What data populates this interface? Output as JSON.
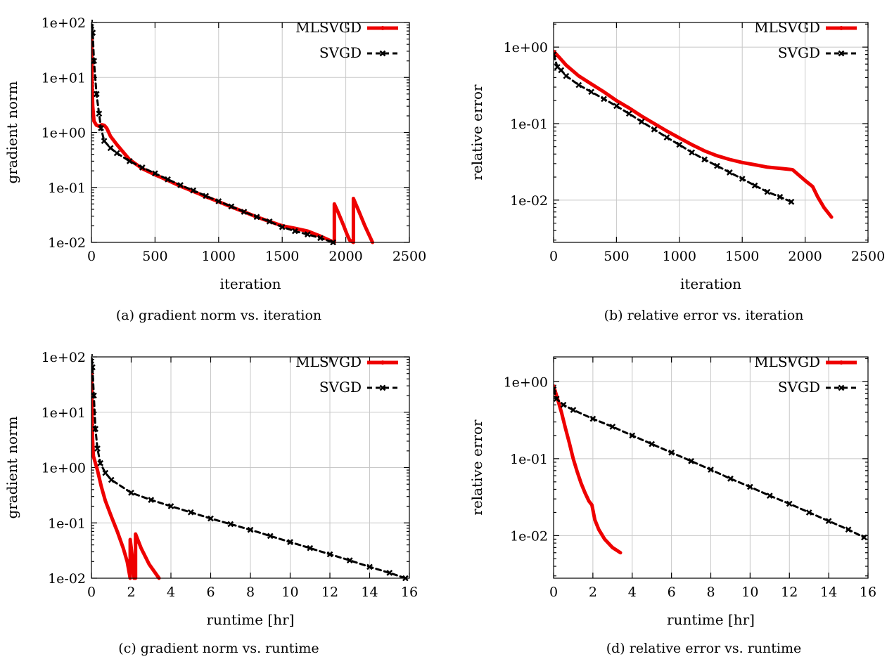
{
  "colors": {
    "mlsvgd": "#ee0000",
    "svgd": "#000000"
  },
  "chart_data": [
    {
      "id": "a",
      "type": "line",
      "caption": "(a) gradient norm vs. iteration",
      "xlabel": "iteration",
      "ylabel": "gradient norm",
      "xlim": [
        0,
        2500
      ],
      "ylim": [
        0.01,
        100
      ],
      "yscale": "log",
      "xticks": [
        0,
        500,
        1000,
        1500,
        2000,
        2500
      ],
      "xtick_labels": [
        "0",
        "500",
        "1000",
        "1500",
        "2000",
        "2500"
      ],
      "yticks": [
        0.01,
        0.1,
        1,
        10,
        100
      ],
      "ytick_labels": [
        "1e-02",
        "1e-01",
        "1e+00",
        "1e+01",
        "1e+02"
      ],
      "grid": true,
      "legend": "top-right",
      "series": [
        {
          "name": "MLSVGD",
          "style": "solid",
          "points": [
            [
              0,
              65
            ],
            [
              5,
              8
            ],
            [
              10,
              3
            ],
            [
              20,
              1.6
            ],
            [
              40,
              1.35
            ],
            [
              60,
              1.3
            ],
            [
              80,
              1.38
            ],
            [
              100,
              1.35
            ],
            [
              120,
              1.2
            ],
            [
              150,
              0.85
            ],
            [
              200,
              0.6
            ],
            [
              300,
              0.32
            ],
            [
              400,
              0.22
            ],
            [
              500,
              0.17
            ],
            [
              600,
              0.135
            ],
            [
              700,
              0.105
            ],
            [
              800,
              0.085
            ],
            [
              900,
              0.068
            ],
            [
              1000,
              0.055
            ],
            [
              1100,
              0.044
            ],
            [
              1200,
              0.036
            ],
            [
              1300,
              0.029
            ],
            [
              1400,
              0.024
            ],
            [
              1500,
              0.02
            ],
            [
              1600,
              0.018
            ],
            [
              1700,
              0.016
            ],
            [
              1800,
              0.013
            ],
            [
              1910,
              0.01
            ],
            [
              1910,
              0.05
            ],
            [
              1940,
              0.035
            ],
            [
              1980,
              0.021
            ],
            [
              2010,
              0.014
            ],
            [
              2030,
              0.011
            ],
            [
              2060,
              0.01
            ],
            [
              2060,
              0.063
            ],
            [
              2100,
              0.038
            ],
            [
              2150,
              0.02
            ],
            [
              2210,
              0.01
            ]
          ]
        },
        {
          "name": "SVGD",
          "style": "dashed",
          "points": [
            [
              0,
              130
            ],
            [
              10,
              65
            ],
            [
              20,
              20
            ],
            [
              40,
              5
            ],
            [
              60,
              2.2
            ],
            [
              75,
              1.2
            ],
            [
              100,
              0.7
            ],
            [
              150,
              0.52
            ],
            [
              200,
              0.42
            ],
            [
              300,
              0.3
            ],
            [
              400,
              0.23
            ],
            [
              500,
              0.18
            ],
            [
              600,
              0.14
            ],
            [
              700,
              0.11
            ],
            [
              800,
              0.088
            ],
            [
              900,
              0.07
            ],
            [
              1000,
              0.056
            ],
            [
              1100,
              0.045
            ],
            [
              1200,
              0.036
            ],
            [
              1300,
              0.029
            ],
            [
              1400,
              0.024
            ],
            [
              1500,
              0.019
            ],
            [
              1600,
              0.016
            ],
            [
              1700,
              0.014
            ],
            [
              1800,
              0.012
            ],
            [
              1900,
              0.01
            ]
          ]
        }
      ]
    },
    {
      "id": "b",
      "type": "line",
      "caption": "(b) relative error vs. iteration",
      "xlabel": "iteration",
      "ylabel": "relative error",
      "xlim": [
        0,
        2500
      ],
      "ylim": [
        0.0028,
        2.1
      ],
      "yscale": "log",
      "xticks": [
        0,
        500,
        1000,
        1500,
        2000,
        2500
      ],
      "xtick_labels": [
        "0",
        "500",
        "1000",
        "1500",
        "2000",
        "2500"
      ],
      "yticks": [
        0.01,
        0.1,
        1
      ],
      "ytick_labels": [
        "1e-02",
        "1e-01",
        "1e+00"
      ],
      "grid": true,
      "legend": "top-right",
      "series": [
        {
          "name": "MLSVGD",
          "style": "solid",
          "points": [
            [
              0,
              0.88
            ],
            [
              50,
              0.72
            ],
            [
              100,
              0.58
            ],
            [
              200,
              0.42
            ],
            [
              300,
              0.33
            ],
            [
              400,
              0.26
            ],
            [
              500,
              0.2
            ],
            [
              600,
              0.16
            ],
            [
              700,
              0.125
            ],
            [
              800,
              0.1
            ],
            [
              900,
              0.08
            ],
            [
              1000,
              0.065
            ],
            [
              1100,
              0.053
            ],
            [
              1200,
              0.044
            ],
            [
              1300,
              0.038
            ],
            [
              1400,
              0.034
            ],
            [
              1500,
              0.031
            ],
            [
              1600,
              0.029
            ],
            [
              1700,
              0.027
            ],
            [
              1800,
              0.026
            ],
            [
              1900,
              0.025
            ],
            [
              2000,
              0.018
            ],
            [
              2060,
              0.015
            ],
            [
              2100,
              0.011
            ],
            [
              2150,
              0.008
            ],
            [
              2210,
              0.006
            ]
          ]
        },
        {
          "name": "SVGD",
          "style": "dashed",
          "points": [
            [
              0,
              0.8
            ],
            [
              30,
              0.55
            ],
            [
              60,
              0.5
            ],
            [
              100,
              0.42
            ],
            [
              200,
              0.32
            ],
            [
              300,
              0.26
            ],
            [
              400,
              0.21
            ],
            [
              500,
              0.17
            ],
            [
              600,
              0.135
            ],
            [
              700,
              0.106
            ],
            [
              800,
              0.084
            ],
            [
              900,
              0.066
            ],
            [
              1000,
              0.053
            ],
            [
              1100,
              0.042
            ],
            [
              1200,
              0.034
            ],
            [
              1300,
              0.028
            ],
            [
              1400,
              0.023
            ],
            [
              1500,
              0.019
            ],
            [
              1600,
              0.0155
            ],
            [
              1700,
              0.0128
            ],
            [
              1800,
              0.011
            ],
            [
              1890,
              0.0095
            ]
          ]
        }
      ]
    },
    {
      "id": "c",
      "type": "line",
      "caption": "(c) gradient norm vs. runtime",
      "xlabel": "runtime [hr]",
      "ylabel": "gradient norm",
      "xlim": [
        0,
        16
      ],
      "ylim": [
        0.01,
        100
      ],
      "yscale": "log",
      "xticks": [
        0,
        2,
        4,
        6,
        8,
        10,
        12,
        14,
        16
      ],
      "xtick_labels": [
        "0",
        "2",
        "4",
        "6",
        "8",
        "10",
        "12",
        "14",
        "16"
      ],
      "yticks": [
        0.01,
        0.1,
        1,
        10,
        100
      ],
      "ytick_labels": [
        "1e-02",
        "1e-01",
        "1e+00",
        "1e+01",
        "1e+02"
      ],
      "grid": true,
      "legend": "top-right",
      "series": [
        {
          "name": "MLSVGD",
          "style": "solid",
          "points": [
            [
              0,
              65
            ],
            [
              0.03,
              8
            ],
            [
              0.06,
              3
            ],
            [
              0.1,
              1.6
            ],
            [
              0.2,
              1.2
            ],
            [
              0.3,
              0.9
            ],
            [
              0.5,
              0.45
            ],
            [
              0.7,
              0.25
            ],
            [
              1.0,
              0.13
            ],
            [
              1.3,
              0.07
            ],
            [
              1.6,
              0.035
            ],
            [
              1.8,
              0.02
            ],
            [
              1.95,
              0.01
            ],
            [
              1.95,
              0.05
            ],
            [
              2.05,
              0.025
            ],
            [
              2.15,
              0.01
            ],
            [
              2.22,
              0.01
            ],
            [
              2.22,
              0.063
            ],
            [
              2.5,
              0.035
            ],
            [
              2.9,
              0.018
            ],
            [
              3.4,
              0.01
            ]
          ]
        },
        {
          "name": "SVGD",
          "style": "dashed",
          "points": [
            [
              0,
              130
            ],
            [
              0.05,
              65
            ],
            [
              0.12,
              20
            ],
            [
              0.2,
              5
            ],
            [
              0.3,
              2.2
            ],
            [
              0.45,
              1.2
            ],
            [
              0.7,
              0.8
            ],
            [
              1,
              0.6
            ],
            [
              2,
              0.35
            ],
            [
              3,
              0.26
            ],
            [
              4,
              0.2
            ],
            [
              5,
              0.155
            ],
            [
              6,
              0.12
            ],
            [
              7,
              0.095
            ],
            [
              8,
              0.075
            ],
            [
              9,
              0.058
            ],
            [
              10,
              0.045
            ],
            [
              11,
              0.035
            ],
            [
              12,
              0.027
            ],
            [
              13,
              0.021
            ],
            [
              14,
              0.016
            ],
            [
              15,
              0.0125
            ],
            [
              15.8,
              0.01
            ]
          ]
        }
      ]
    },
    {
      "id": "d",
      "type": "line",
      "caption": "(d) relative error vs. runtime",
      "xlabel": "runtime [hr]",
      "ylabel": "relative error",
      "xlim": [
        0,
        16
      ],
      "ylim": [
        0.0028,
        2.1
      ],
      "yscale": "log",
      "xticks": [
        0,
        2,
        4,
        6,
        8,
        10,
        12,
        14,
        16
      ],
      "xtick_labels": [
        "0",
        "2",
        "4",
        "6",
        "8",
        "10",
        "12",
        "14",
        "16"
      ],
      "yticks": [
        0.01,
        0.1,
        1
      ],
      "ytick_labels": [
        "1e-02",
        "1e-01",
        "1e+00"
      ],
      "grid": true,
      "legend": "top-right",
      "series": [
        {
          "name": "MLSVGD",
          "style": "solid",
          "points": [
            [
              0,
              0.88
            ],
            [
              0.2,
              0.6
            ],
            [
              0.4,
              0.4
            ],
            [
              0.6,
              0.25
            ],
            [
              0.8,
              0.16
            ],
            [
              1.0,
              0.1
            ],
            [
              1.2,
              0.068
            ],
            [
              1.4,
              0.048
            ],
            [
              1.6,
              0.036
            ],
            [
              1.8,
              0.028
            ],
            [
              1.95,
              0.025
            ],
            [
              2.1,
              0.016
            ],
            [
              2.3,
              0.012
            ],
            [
              2.6,
              0.009
            ],
            [
              3.0,
              0.007
            ],
            [
              3.4,
              0.006
            ]
          ]
        },
        {
          "name": "SVGD",
          "style": "dashed",
          "points": [
            [
              0,
              0.8
            ],
            [
              0.15,
              0.6
            ],
            [
              0.5,
              0.5
            ],
            [
              1,
              0.43
            ],
            [
              2,
              0.33
            ],
            [
              3,
              0.26
            ],
            [
              4,
              0.2
            ],
            [
              5,
              0.155
            ],
            [
              6,
              0.12
            ],
            [
              7,
              0.093
            ],
            [
              8,
              0.072
            ],
            [
              9,
              0.055
            ],
            [
              10,
              0.043
            ],
            [
              11,
              0.033
            ],
            [
              12,
              0.026
            ],
            [
              13,
              0.02
            ],
            [
              14,
              0.0155
            ],
            [
              15,
              0.012
            ],
            [
              15.8,
              0.0095
            ]
          ]
        }
      ]
    }
  ]
}
